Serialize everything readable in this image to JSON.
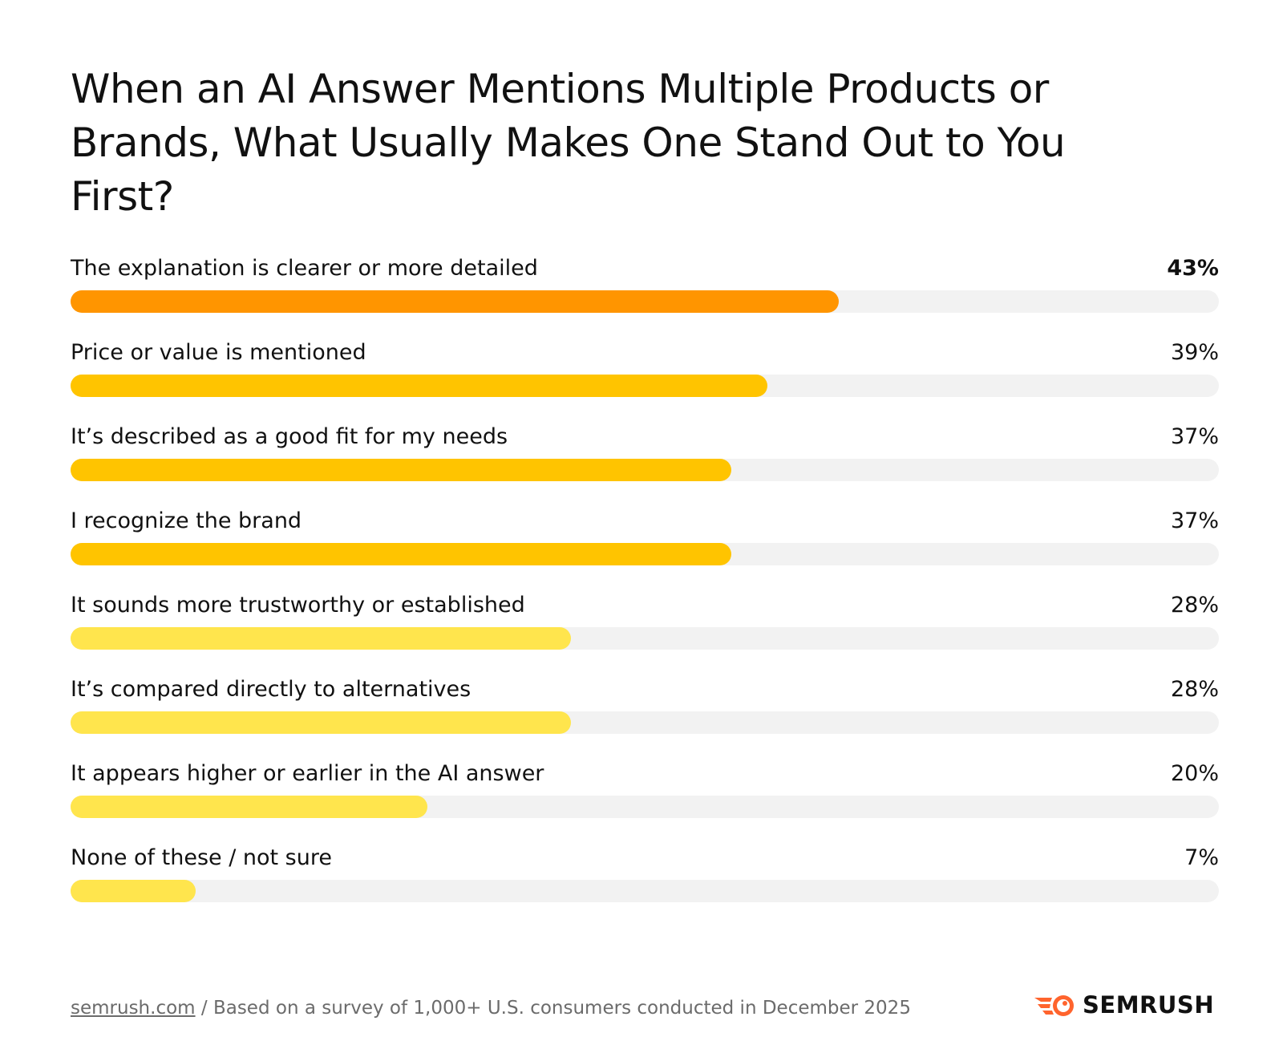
{
  "chart_data": {
    "type": "bar",
    "orientation": "horizontal",
    "title": "When an AI Answer Mentions Multiple Products or Brands, What Usually Makes One Stand Out to You First?",
    "categories": [
      "The explanation is clearer or more detailed",
      "Price or value is mentioned",
      "It’s described as a good fit for my needs",
      "I recognize the brand",
      "It sounds more trustworthy or established",
      "It’s compared directly to alternatives",
      "It appears higher or earlier in the AI answer",
      "None of these / not sure"
    ],
    "values": [
      43,
      39,
      37,
      37,
      28,
      28,
      20,
      7
    ],
    "value_labels": [
      "43%",
      "39%",
      "37%",
      "37%",
      "28%",
      "28%",
      "20%",
      "7%"
    ],
    "xlim": [
      0,
      64.3
    ],
    "colors": [
      "#ff9500",
      "#ffc400",
      "#ffc400",
      "#ffc400",
      "#ffe54d",
      "#ffe54d",
      "#ffe54d",
      "#ffe54d"
    ],
    "track_color": "#f2f2f2",
    "grid": false
  },
  "footer": {
    "source_link": "semrush.com",
    "source_text": " / Based on a survey of 1,000+ U.S. consumers conducted in December 2025"
  },
  "logo": {
    "text": "SEMRUSH",
    "color": "#ff642d",
    "icon": "semrush-fireball-icon"
  }
}
